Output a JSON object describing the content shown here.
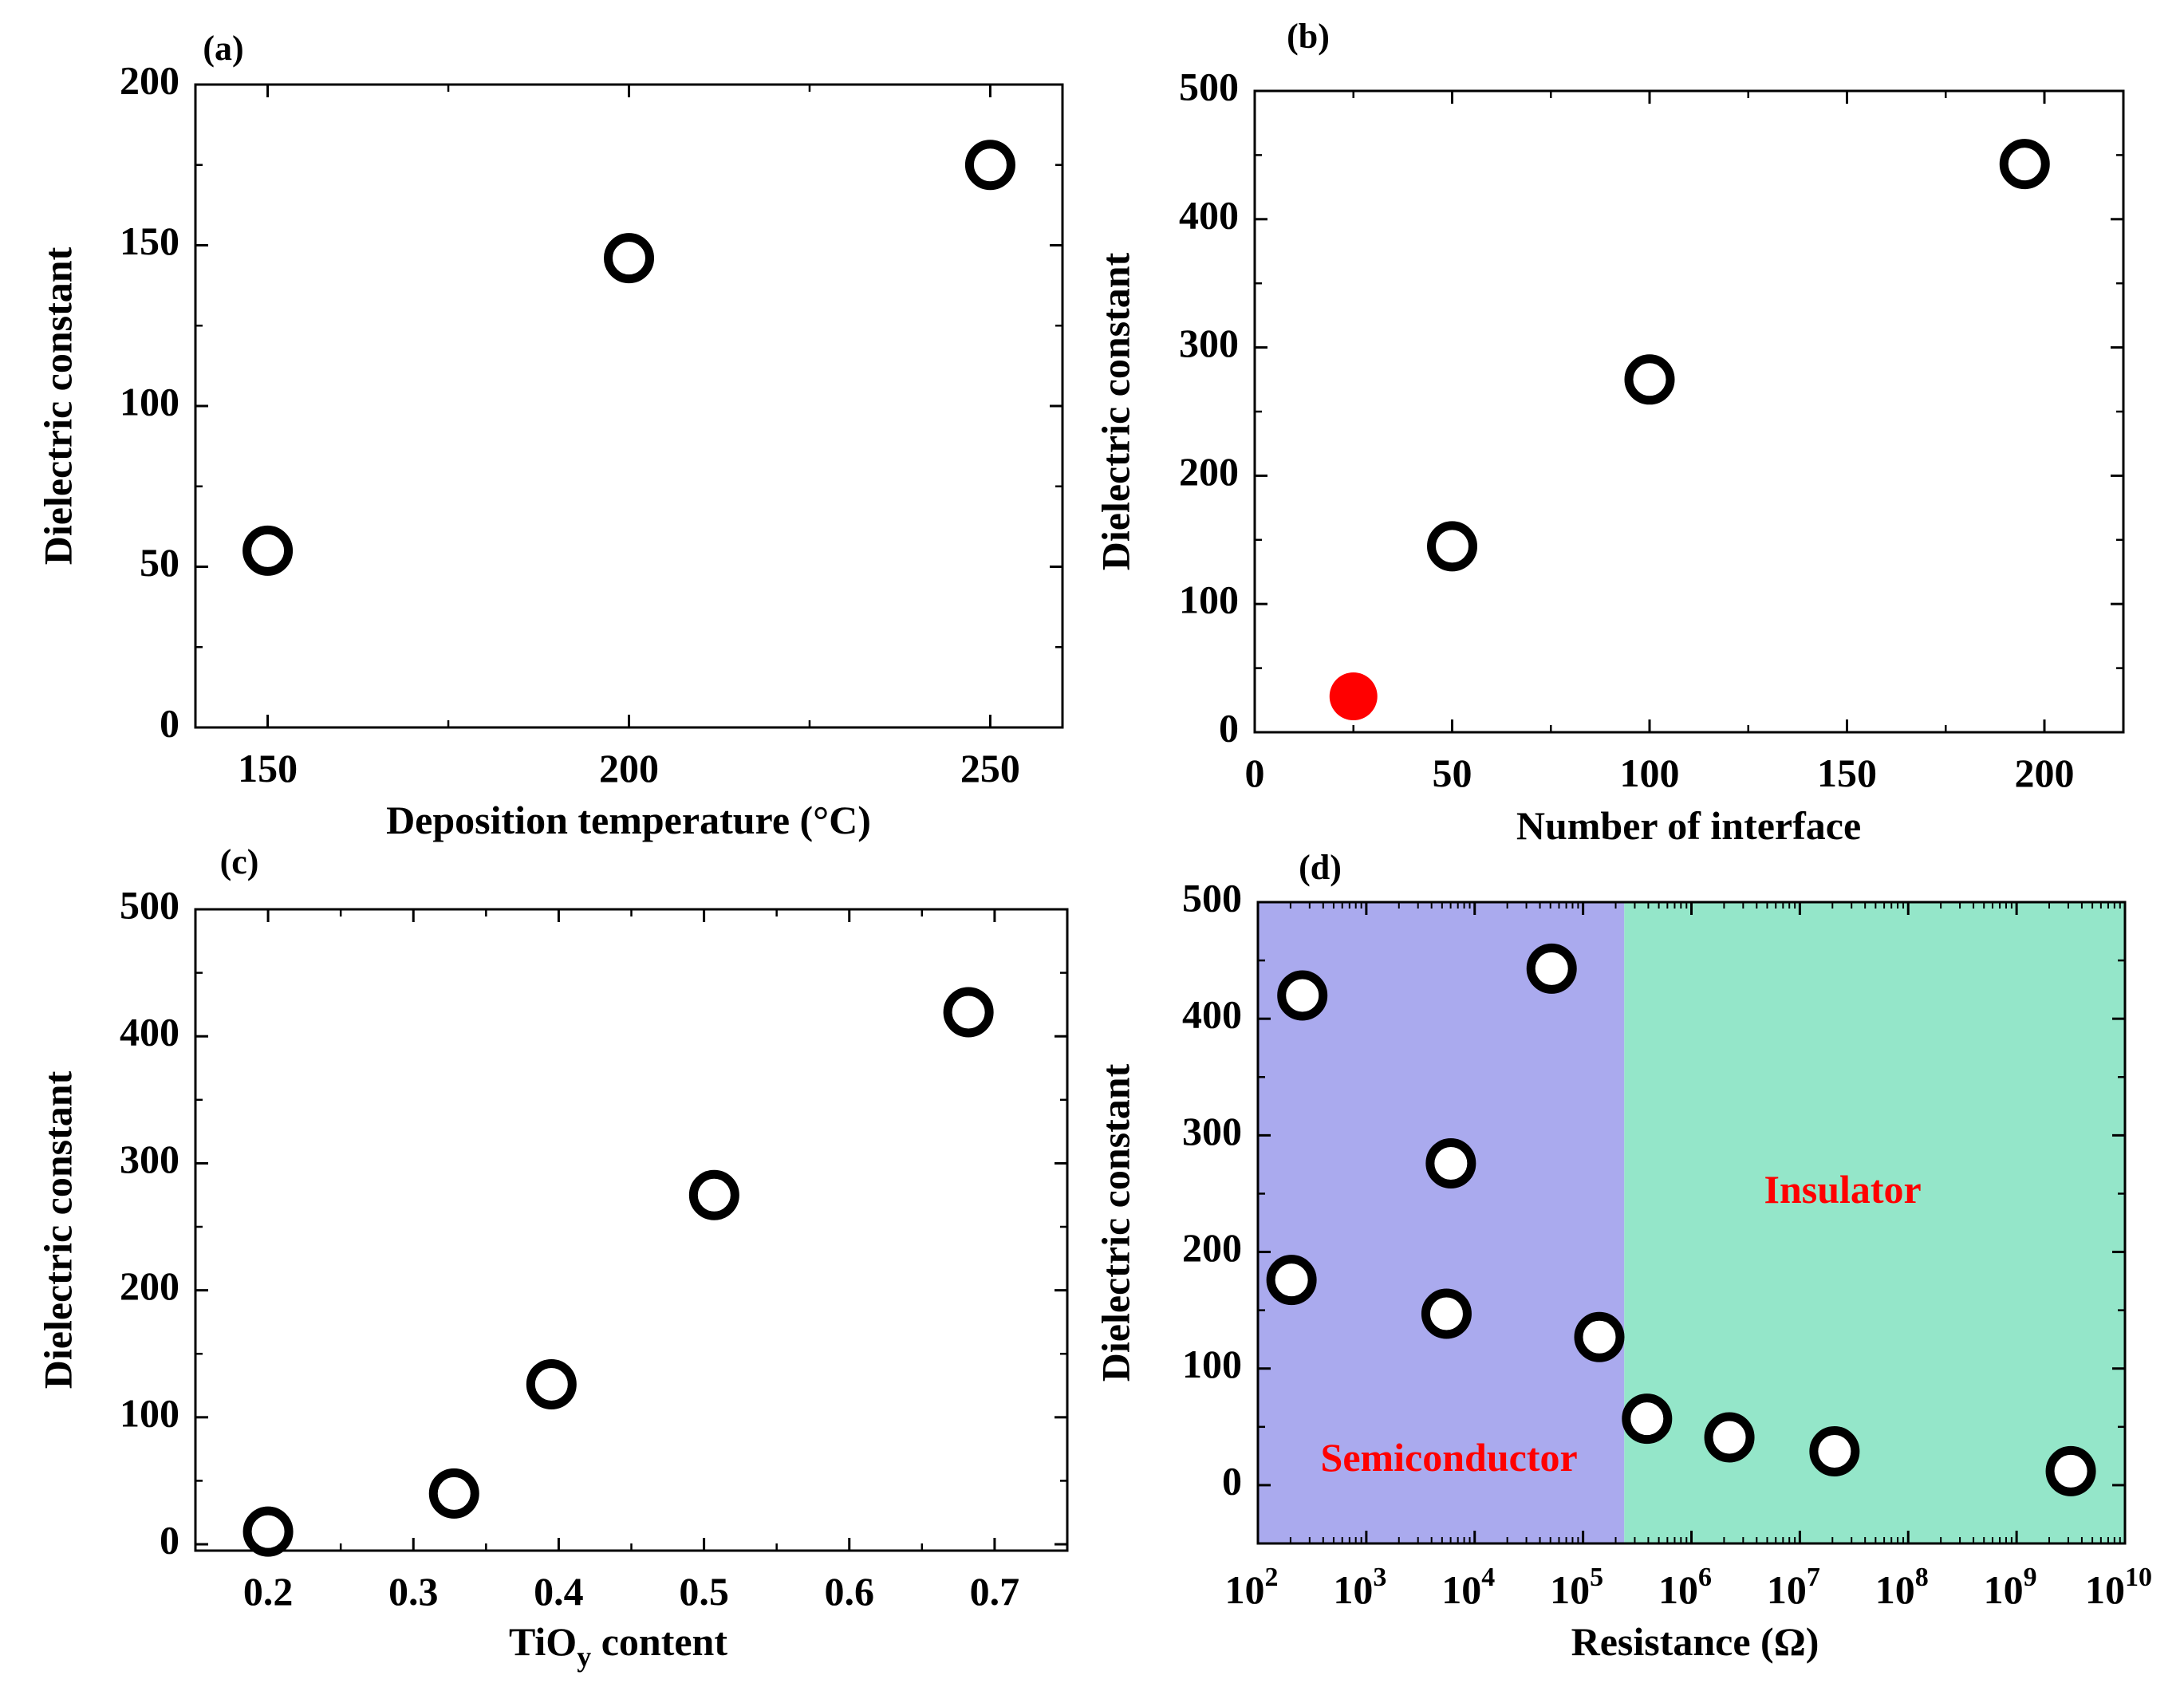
{
  "chart_data": [
    {
      "type": "scatter",
      "panel": "(a)",
      "xlabel": "Deposition temperature (°C)",
      "ylabel": "Dielectric constant",
      "xlim": [
        140,
        260
      ],
      "ylim": [
        0,
        200
      ],
      "x_ticks": [
        150,
        200,
        250
      ],
      "y_ticks": [
        0,
        50,
        100,
        150,
        200
      ],
      "series": [
        {
          "name": "hollow",
          "style": "hollow",
          "color": "#000000",
          "x": [
            150,
            200,
            250
          ],
          "y": [
            55,
            146,
            175
          ]
        }
      ]
    },
    {
      "type": "scatter",
      "panel": "(b)",
      "xlabel": "Number of interface",
      "ylabel": "Dielectric constant",
      "xlim": [
        0,
        220
      ],
      "ylim": [
        0,
        500
      ],
      "x_ticks": [
        0,
        50,
        100,
        150,
        200
      ],
      "y_ticks": [
        0,
        100,
        200,
        300,
        400,
        500
      ],
      "series": [
        {
          "name": "hollow",
          "style": "hollow",
          "color": "#000000",
          "x": [
            50,
            100,
            195
          ],
          "y": [
            145,
            275,
            443
          ]
        },
        {
          "name": "filled",
          "style": "filled",
          "color": "#ff0000",
          "x": [
            25
          ],
          "y": [
            28
          ]
        }
      ]
    },
    {
      "type": "scatter",
      "panel": "(c)",
      "xlabel": "TiO",
      "xlabel_sub": "y",
      "xlabel_tail": " content",
      "ylabel": "Dielectric constant",
      "xlim": [
        0.15,
        0.75
      ],
      "ylim": [
        -5,
        500
      ],
      "x_ticks": [
        "0.2",
        "0.3",
        "0.4",
        "0.5",
        "0.6",
        "0.7"
      ],
      "y_ticks": [
        0,
        100,
        200,
        300,
        400,
        500
      ],
      "series": [
        {
          "name": "hollow",
          "style": "hollow",
          "color": "#000000",
          "x": [
            0.2,
            0.328,
            0.395,
            0.507,
            0.682
          ],
          "y": [
            10,
            40,
            126,
            275,
            419
          ]
        }
      ]
    },
    {
      "type": "scatter",
      "panel": "(d)",
      "xlabel": "Resistance (Ω)",
      "ylabel": "Dielectric constant",
      "xscale": "log",
      "xlim_log10": [
        2,
        10
      ],
      "ylim": [
        -50,
        500
      ],
      "x_tick_base": "10",
      "x_tick_exponents": [
        "2",
        "3",
        "4",
        "5",
        "6",
        "7",
        "8",
        "9",
        "10"
      ],
      "y_ticks": [
        0,
        100,
        200,
        300,
        400,
        500
      ],
      "regions": [
        {
          "label": "Semiconductor",
          "color": "#aaaaee",
          "label_color": "#ff0000",
          "from_log10": 2,
          "to_log10": 5.38
        },
        {
          "label": "Insulator",
          "color": "#94e6c9",
          "label_color": "#ff0000",
          "from_log10": 5.38,
          "to_log10": 10
        }
      ],
      "series": [
        {
          "name": "hollow",
          "style": "hollow",
          "color": "#000000",
          "x_log10": [
            2.41,
            2.31,
            4.71,
            3.78,
            3.74,
            5.15,
            5.59,
            6.35,
            7.32,
            9.5
          ],
          "y": [
            420,
            176,
            443,
            276,
            147,
            127,
            57,
            41,
            29,
            12
          ]
        }
      ]
    }
  ]
}
